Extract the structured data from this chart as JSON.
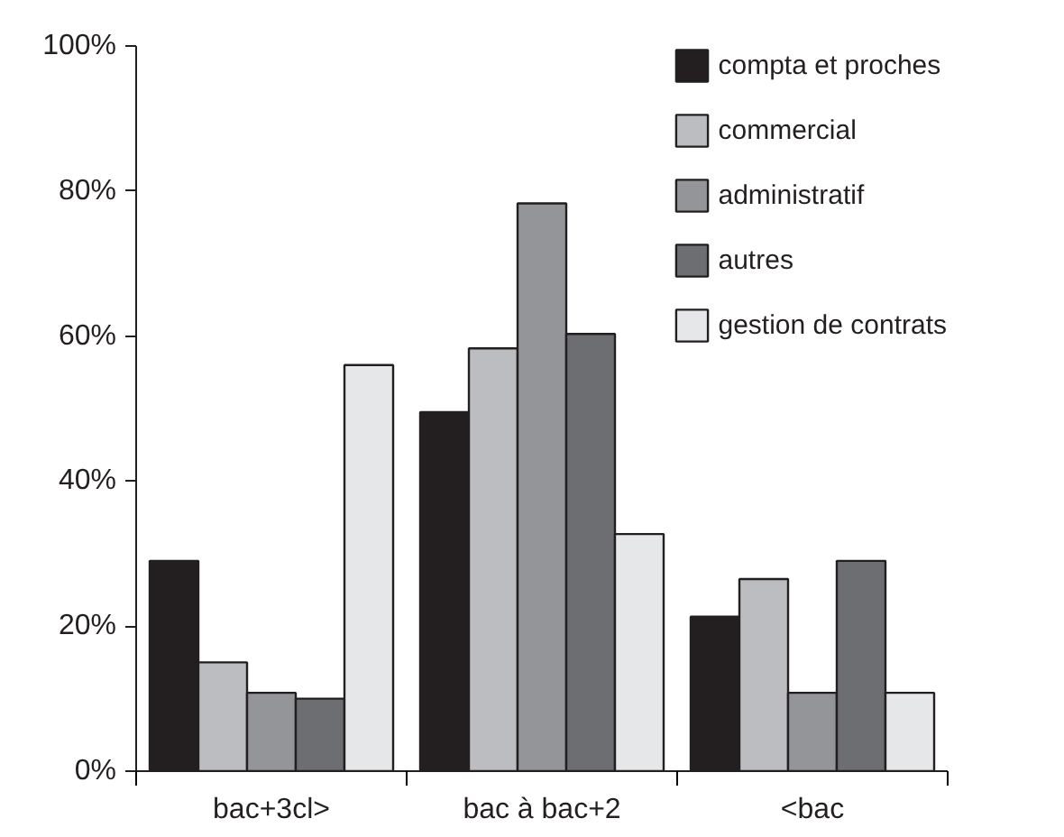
{
  "chart_data": {
    "type": "bar",
    "categories": [
      "bac+3cl>",
      "bac à bac+2",
      "<bac"
    ],
    "series": [
      {
        "name": "compta et proches",
        "color": "#231f20",
        "values": [
          29,
          49.5,
          21.3
        ]
      },
      {
        "name": "commercial",
        "color": "#bcbdc0",
        "values": [
          15,
          58.3,
          26.5
        ]
      },
      {
        "name": "administratif",
        "color": "#939598",
        "values": [
          10.8,
          78.3,
          10.8
        ]
      },
      {
        "name": "autres",
        "color": "#6d6e71",
        "values": [
          10,
          60.3,
          29
        ]
      },
      {
        "name": "gestion de contrats",
        "color": "#e6e7e8",
        "values": [
          56,
          32.7,
          10.8
        ]
      }
    ],
    "ylim": [
      0,
      100
    ],
    "yticks": [
      {
        "value": 0,
        "label": "0%"
      },
      {
        "value": 20,
        "label": "20%"
      },
      {
        "value": 40,
        "label": "40%"
      },
      {
        "value": 60,
        "label": "60%"
      },
      {
        "value": 80,
        "label": "80%"
      },
      {
        "value": 100,
        "label": "100%"
      }
    ],
    "grid": false,
    "legend": "top right"
  }
}
